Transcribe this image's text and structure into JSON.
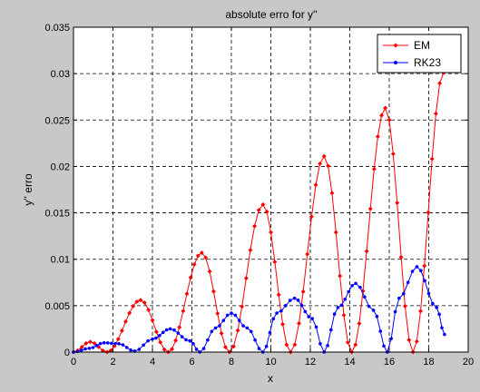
{
  "chart_data": {
    "type": "line",
    "title": "absolute erro for y''",
    "xlabel": "x",
    "ylabel": "y'' erro",
    "xlim": [
      0,
      20
    ],
    "ylim": [
      0,
      0.035
    ],
    "xticks": [
      "0",
      "2",
      "4",
      "6",
      "8",
      "10",
      "12",
      "14",
      "16",
      "18",
      "20"
    ],
    "yticks": [
      "0",
      "0.005",
      "0.01",
      "0.015",
      "0.02",
      "0.025",
      "0.03",
      "0.035"
    ],
    "grid": true,
    "legend_position": "top-right",
    "colors": {
      "figure_bg": "#c8c8c8",
      "axes_bg": "#ffffff",
      "grid": "#000000"
    },
    "series": [
      {
        "name": "EM",
        "color": "#ff0000",
        "marker": "diamond",
        "peaks": [
          [
            0.0,
            0.0
          ],
          [
            0.85,
            0.0011
          ],
          [
            1.7,
            0.0
          ],
          [
            3.4,
            0.0056
          ],
          [
            4.8,
            0.0
          ],
          [
            6.5,
            0.0107
          ],
          [
            7.9,
            0.0
          ],
          [
            9.6,
            0.0159
          ],
          [
            11.0,
            0.0
          ],
          [
            12.7,
            0.0211
          ],
          [
            14.1,
            0.0
          ],
          [
            15.8,
            0.0263
          ],
          [
            17.2,
            0.0
          ],
          [
            18.75,
            0.0301
          ]
        ]
      },
      {
        "name": "RK23",
        "color": "#0000ff",
        "marker": "dot",
        "peaks": [
          [
            0.0,
            0.0
          ],
          [
            0.8,
            0.0004
          ],
          [
            1.55,
            0.001
          ],
          [
            2.3,
            0.0009
          ],
          [
            3.1,
            0.0001
          ],
          [
            4.0,
            0.0014
          ],
          [
            4.9,
            0.0025
          ],
          [
            5.9,
            0.0012
          ],
          [
            6.4,
            0.0
          ],
          [
            7.2,
            0.0026
          ],
          [
            8.0,
            0.0042
          ],
          [
            8.8,
            0.0026
          ],
          [
            9.6,
            0.0
          ],
          [
            10.3,
            0.0042
          ],
          [
            11.2,
            0.0058
          ],
          [
            12.1,
            0.0036
          ],
          [
            12.7,
            0.0
          ],
          [
            13.4,
            0.0048
          ],
          [
            14.3,
            0.0074
          ],
          [
            15.2,
            0.0045
          ],
          [
            15.9,
            0.0
          ],
          [
            16.5,
            0.0058
          ],
          [
            17.4,
            0.0092
          ],
          [
            18.4,
            0.0048
          ],
          [
            18.8,
            0.0019
          ]
        ]
      }
    ]
  }
}
